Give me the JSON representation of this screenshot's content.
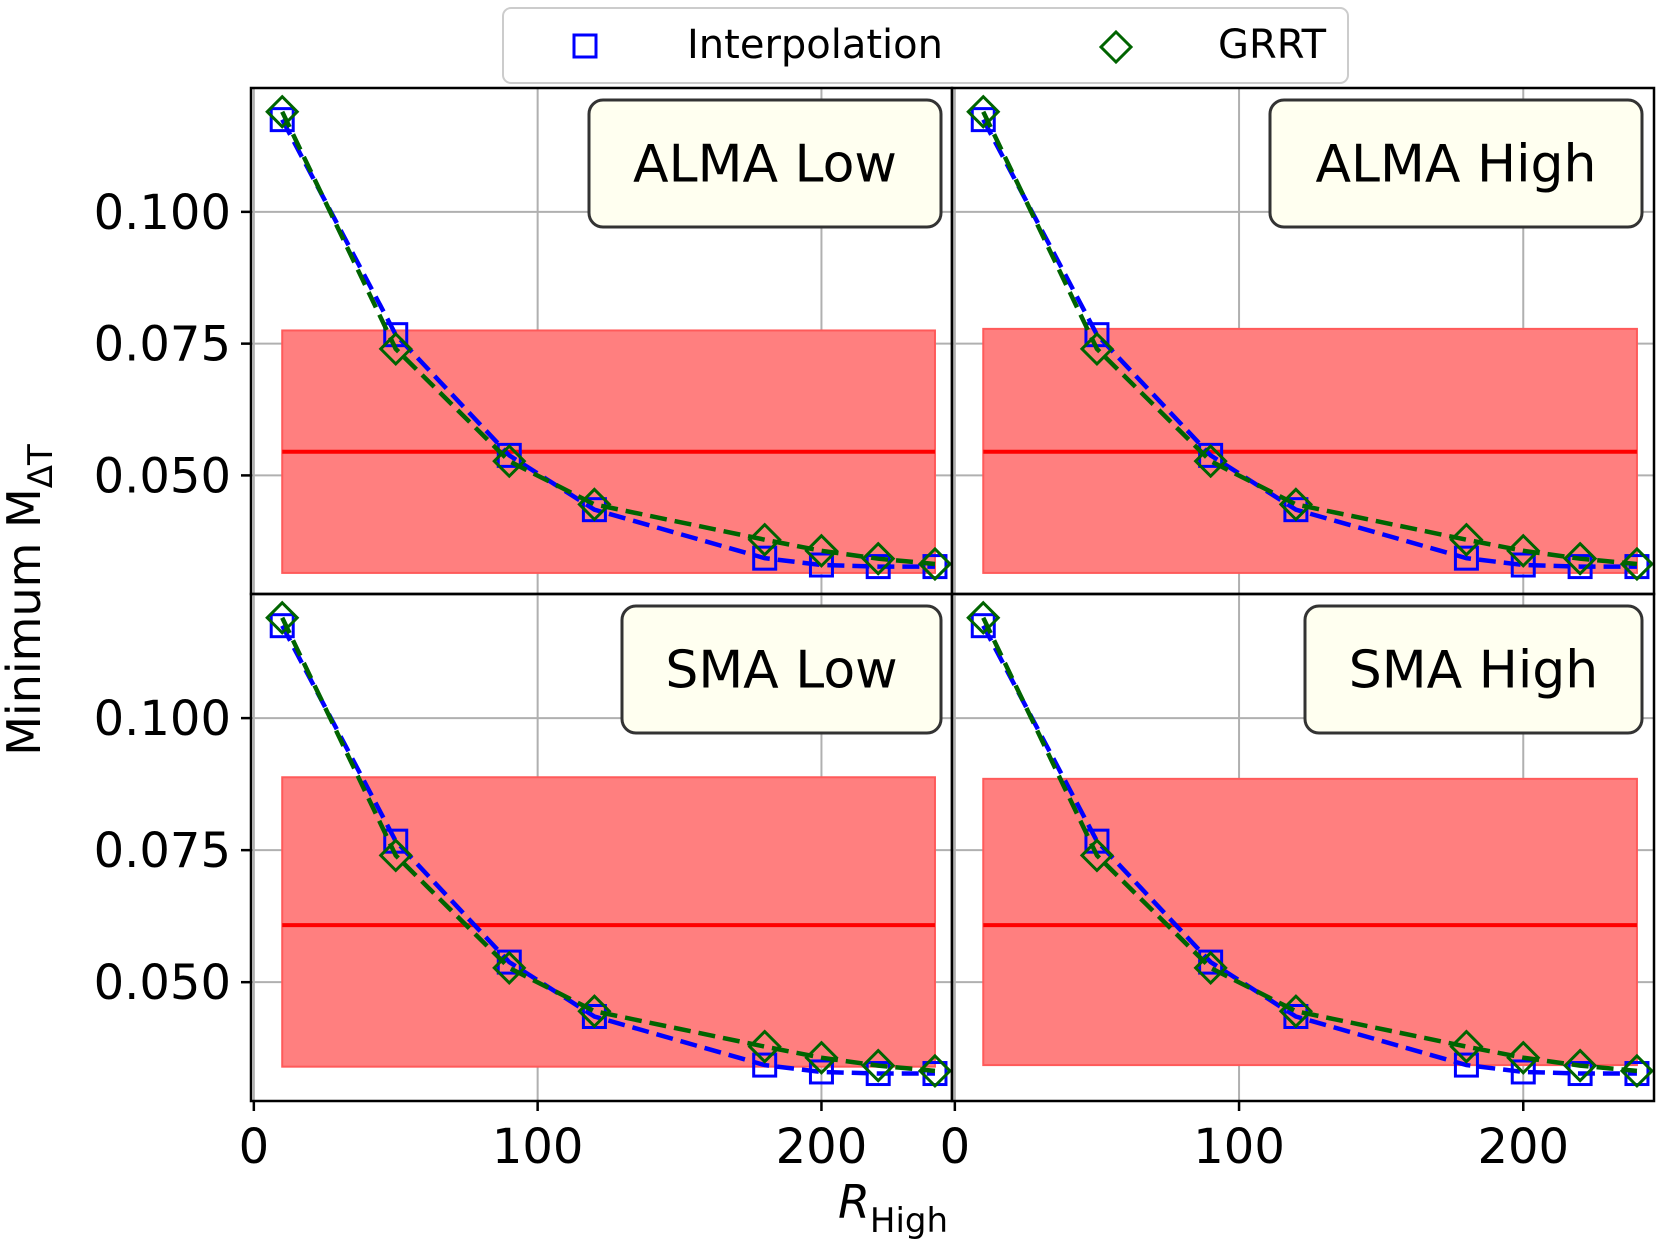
{
  "chart_data": {
    "type": "line",
    "xlabel": "R",
    "xlabel_subscript": "High",
    "ylabel": "Minimum M",
    "ylabel_subscript": "ΔT",
    "xlim": [
      -1,
      246
    ],
    "ylim": [
      0.0275,
      0.1235
    ],
    "xticks": [
      "0",
      "100",
      "200"
    ],
    "yticks": [
      "0.050",
      "0.075",
      "0.100"
    ],
    "grid": true,
    "legend_position": "top-center",
    "legend": [
      {
        "name": "Interpolation",
        "marker": "square",
        "color": "#0000ff"
      },
      {
        "name": "GRRT",
        "marker": "diamond",
        "color": "#006400"
      }
    ],
    "panels": [
      {
        "title": "ALMA Low",
        "band": {
          "x": [
            10,
            240
          ],
          "low": 0.0315,
          "mid": 0.0545,
          "high": 0.0775
        },
        "series": [
          {
            "name": "Interpolation",
            "x": [
              10,
              50,
              90,
              120,
              180,
              200,
              220,
              240
            ],
            "y": [
              0.1175,
              0.0767,
              0.0538,
              0.0435,
              0.0343,
              0.033,
              0.0327,
              0.0327
            ]
          },
          {
            "name": "GRRT",
            "x": [
              10,
              50,
              90,
              120,
              180,
              200,
              220,
              240
            ],
            "y": [
              0.119,
              0.074,
              0.0527,
              0.0445,
              0.0378,
              0.0357,
              0.0342,
              0.0332
            ]
          }
        ]
      },
      {
        "title": "ALMA High",
        "band": {
          "x": [
            10,
            240
          ],
          "low": 0.0315,
          "mid": 0.0545,
          "high": 0.0778
        },
        "series": [
          {
            "name": "Interpolation",
            "x": [
              10,
              50,
              90,
              120,
              180,
              200,
              220,
              240
            ],
            "y": [
              0.1175,
              0.0767,
              0.0538,
              0.0435,
              0.0343,
              0.033,
              0.0327,
              0.0327
            ]
          },
          {
            "name": "GRRT",
            "x": [
              10,
              50,
              90,
              120,
              180,
              200,
              220,
              240
            ],
            "y": [
              0.119,
              0.074,
              0.0527,
              0.0445,
              0.0378,
              0.0357,
              0.0342,
              0.0332
            ]
          }
        ]
      },
      {
        "title": "SMA Low",
        "band": {
          "x": [
            10,
            240
          ],
          "low": 0.034,
          "mid": 0.0608,
          "high": 0.0888
        },
        "series": [
          {
            "name": "Interpolation",
            "x": [
              10,
              50,
              90,
              120,
              180,
              200,
              220,
              240
            ],
            "y": [
              0.1175,
              0.0767,
              0.0538,
              0.0435,
              0.0343,
              0.033,
              0.0327,
              0.0327
            ]
          },
          {
            "name": "GRRT",
            "x": [
              10,
              50,
              90,
              120,
              180,
              200,
              220,
              240
            ],
            "y": [
              0.119,
              0.074,
              0.0527,
              0.0445,
              0.0378,
              0.0357,
              0.0342,
              0.0332
            ]
          }
        ]
      },
      {
        "title": "SMA High",
        "band": {
          "x": [
            10,
            240
          ],
          "low": 0.0343,
          "mid": 0.0608,
          "high": 0.0885
        },
        "series": [
          {
            "name": "Interpolation",
            "x": [
              10,
              50,
              90,
              120,
              180,
              200,
              220,
              240
            ],
            "y": [
              0.1175,
              0.0767,
              0.0538,
              0.0435,
              0.0343,
              0.033,
              0.0327,
              0.0327
            ]
          },
          {
            "name": "GRRT",
            "x": [
              10,
              50,
              90,
              120,
              180,
              200,
              220,
              240
            ],
            "y": [
              0.119,
              0.074,
              0.0527,
              0.0445,
              0.0378,
              0.0357,
              0.0342,
              0.0332
            ]
          }
        ]
      }
    ]
  },
  "colors": {
    "band_fill": "#ff7f7f",
    "band_edge": "#ff5a5a",
    "band_mid": "#ff0000",
    "interpolation": "#0000ff",
    "grrt": "#006400",
    "title_box_fill": "#fffff0",
    "grid": "#b0b0b0"
  }
}
